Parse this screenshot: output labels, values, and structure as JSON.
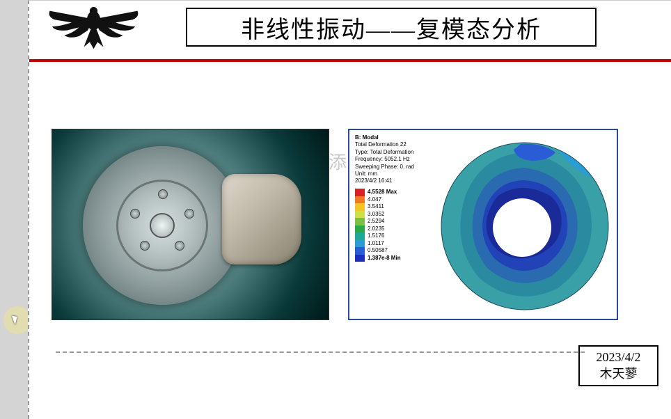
{
  "title": "非线性振动——复模态分析",
  "watermark": "添",
  "date": "2023/4/2",
  "author": "木天蓼",
  "simulation": {
    "header": {
      "line1_bold": "B: Modal",
      "line2": "Total Deformation 22",
      "line3": "Type: Total Deformation",
      "line4": "Frequency: 5052.1 Hz",
      "line5": "Sweeping Phase: 0. rad",
      "line6": "Unit: mm",
      "line7": "2023/4/2 16:41"
    },
    "legend": [
      {
        "color": "#d92027",
        "label": "4.5528 Max",
        "bold": true
      },
      {
        "color": "#ef7b21",
        "label": "4.047"
      },
      {
        "color": "#f3c623",
        "label": "3.5411"
      },
      {
        "color": "#cfe046",
        "label": "3.0352"
      },
      {
        "color": "#7bc043",
        "label": "2.5294"
      },
      {
        "color": "#2ba84a",
        "label": "2.0235"
      },
      {
        "color": "#1ea896",
        "label": "1.5176"
      },
      {
        "color": "#2a9dd6",
        "label": "1.0117"
      },
      {
        "color": "#2a5cd6",
        "label": "0.50587"
      },
      {
        "color": "#1a2fbd",
        "label": "1.387e-8 Min",
        "bold": true
      }
    ],
    "contour": {
      "outer_color": "#3aa0a8",
      "band2_color": "#2a8aa0",
      "band3_color": "#2a6ab0",
      "band4_color": "#2242b8",
      "hole_color": "#ffffff",
      "dark_blob_color": "#1a2a98",
      "top_patch_color": "#2a5cd6",
      "tr_patch_color": "#2a9dd6"
    }
  }
}
